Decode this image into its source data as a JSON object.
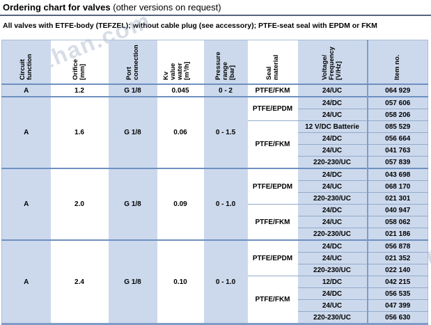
{
  "page": {
    "title_bold": "Ordering chart for valves",
    "title_normal": "(other versions on request)",
    "subtitle": "All valves with ETFE-body (TEFZEL); without cable plug (see accessory); PTFE-seat seal with EPDM or FKM"
  },
  "watermark": {
    "text": "gkzhan.com"
  },
  "colors": {
    "cell_blue": "#ccd9ec",
    "line_medium": "#6e90c0",
    "line_light": "#93a9c9",
    "outer_border": "#a9bcd6",
    "bottom_bar": "#7e9cc7"
  },
  "table": {
    "headers": [
      {
        "label": "Circuit\nfunction"
      },
      {
        "label": "Orifice\n[mm]"
      },
      {
        "label": "Port\nconnection"
      },
      {
        "label": "Kv value\nwater\n[m³/h]"
      },
      {
        "label": "Pressure\nrange\n[bar]"
      },
      {
        "label": "Seal\nmaterial"
      },
      {
        "label": "Voltage/\nFrequency\n[V/Hz]"
      },
      {
        "label": "Item no."
      }
    ],
    "sections": [
      {
        "circuit": "A",
        "orifice": "1.2",
        "port": "G 1/8",
        "kv": "0.045",
        "pressure": "0 - 2",
        "seals": [
          {
            "material": "PTFE/FKM",
            "variants": [
              {
                "voltage": "24/UC",
                "item": "064 929"
              }
            ]
          }
        ]
      },
      {
        "circuit": "A",
        "orifice": "1.6",
        "port": "G 1/8",
        "kv": "0.06",
        "pressure": "0 - 1.5",
        "seals": [
          {
            "material": "PTFE/EPDM",
            "variants": [
              {
                "voltage": "24/DC",
                "item": "057 606"
              },
              {
                "voltage": "24/UC",
                "item": "058 206"
              }
            ]
          },
          {
            "material": "PTFE/FKM",
            "variants": [
              {
                "voltage": "12 V/DC Batterie",
                "item": "085 529"
              },
              {
                "voltage": "24/DC",
                "item": "056 664"
              },
              {
                "voltage": "24/UC",
                "item": "041 763"
              },
              {
                "voltage": "220-230/UC",
                "item": "057 839"
              }
            ]
          }
        ]
      },
      {
        "circuit": "A",
        "orifice": "2.0",
        "port": "G 1/8",
        "kv": "0.09",
        "pressure": "0 - 1.0",
        "seals": [
          {
            "material": "PTFE/EPDM",
            "variants": [
              {
                "voltage": "24/DC",
                "item": "043 698"
              },
              {
                "voltage": "24/UC",
                "item": "068 170"
              },
              {
                "voltage": "220-230/UC",
                "item": "021 301"
              }
            ]
          },
          {
            "material": "PTFE/FKM",
            "variants": [
              {
                "voltage": "24/DC",
                "item": "040 947"
              },
              {
                "voltage": "24/UC",
                "item": "058 062"
              },
              {
                "voltage": "220-230/UC",
                "item": "021 186"
              }
            ]
          }
        ]
      },
      {
        "circuit": "A",
        "orifice": "2.4",
        "port": "G 1/8",
        "kv": "0.10",
        "pressure": "0 - 1.0",
        "seals": [
          {
            "material": "PTFE/EPDM",
            "variants": [
              {
                "voltage": "24/DC",
                "item": "056 878"
              },
              {
                "voltage": "24/UC",
                "item": "021 352"
              },
              {
                "voltage": "220-230/UC",
                "item": "022 140"
              }
            ]
          },
          {
            "material": "PTFE/FKM",
            "variants": [
              {
                "voltage": "12/DC",
                "item": "042 215"
              },
              {
                "voltage": "24/DC",
                "item": "056 535"
              },
              {
                "voltage": "24/UC",
                "item": "047 399"
              },
              {
                "voltage": "220-230/UC",
                "item": "056 630"
              }
            ]
          }
        ]
      }
    ]
  }
}
